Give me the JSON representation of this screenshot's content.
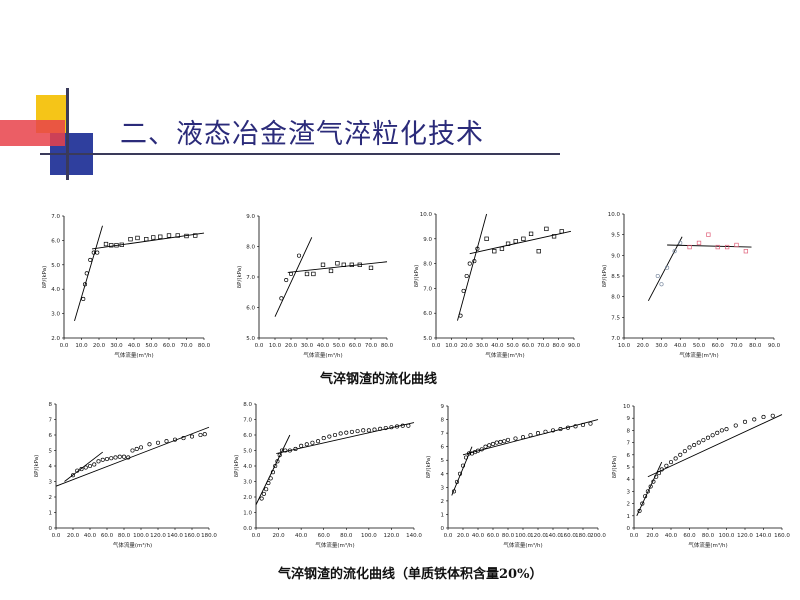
{
  "title": "二、液态冶金渣气淬粒化技术",
  "captions": {
    "row1": "气淬钢渣的流化曲线",
    "row2": "气淬钢渣的流化曲线（单质铁体积含量20%）"
  },
  "colors": {
    "accent_yellow": "#f5c518",
    "accent_red": "#e8424a",
    "accent_blue": "#2f3f9e",
    "title": "#2b2b7a",
    "marker_red": "#e0607a"
  },
  "chart_data": [
    {
      "type": "scatter",
      "marker": "circle",
      "xlabel": "气体流量(m³/h)",
      "ylabel": "δP/(kPa)",
      "xlim": [
        0,
        80
      ],
      "ylim": [
        2,
        7
      ],
      "xticks": [
        "0.0",
        "10.0",
        "20.0",
        "30.0",
        "40.0",
        "50.0",
        "60.0",
        "70.0",
        "80.0"
      ],
      "yticks": [
        "2.0",
        "3.0",
        "4.0",
        "5.0",
        "6.0",
        "7.0"
      ],
      "points": [
        [
          11,
          3.6
        ],
        [
          12,
          4.2
        ],
        [
          13,
          4.65
        ],
        [
          15,
          5.2
        ],
        [
          17,
          5.5
        ],
        [
          19,
          5.5
        ]
      ],
      "points2": [
        [
          24,
          5.85
        ],
        [
          27,
          5.8
        ],
        [
          30,
          5.8
        ],
        [
          33,
          5.82
        ],
        [
          38,
          6.05
        ],
        [
          42,
          6.1
        ],
        [
          47,
          6.05
        ],
        [
          51,
          6.12
        ],
        [
          55,
          6.15
        ],
        [
          60,
          6.2
        ],
        [
          65,
          6.2
        ],
        [
          70,
          6.18
        ],
        [
          75,
          6.2
        ]
      ],
      "lines": [
        [
          [
            6,
            2.7
          ],
          [
            22,
            6.6
          ]
        ],
        [
          [
            16,
            5.65
          ],
          [
            80,
            6.3
          ]
        ]
      ]
    },
    {
      "type": "scatter",
      "marker": "circle",
      "xlabel": "气体流量(m³/h)",
      "ylabel": "δP/(kPa)",
      "xlim": [
        0,
        80
      ],
      "ylim": [
        5,
        9
      ],
      "xticks": [
        "0.0",
        "10.0",
        "20.0",
        "30.0",
        "40.0",
        "50.0",
        "60.0",
        "70.0",
        "80.0"
      ],
      "yticks": [
        "5.0",
        "6.0",
        "7.0",
        "8.0",
        "9.0"
      ],
      "points": [
        [
          14,
          6.3
        ],
        [
          17,
          6.9
        ],
        [
          20,
          7.1
        ],
        [
          25,
          7.7
        ]
      ],
      "points2": [
        [
          30,
          7.1
        ],
        [
          34,
          7.1
        ],
        [
          40,
          7.4
        ],
        [
          45,
          7.2
        ],
        [
          49,
          7.45
        ],
        [
          53,
          7.4
        ],
        [
          58,
          7.4
        ],
        [
          63,
          7.4
        ],
        [
          70,
          7.3
        ]
      ],
      "lines": [
        [
          [
            10,
            5.7
          ],
          [
            33,
            8.3
          ]
        ],
        [
          [
            18,
            7.15
          ],
          [
            80,
            7.5
          ]
        ]
      ]
    },
    {
      "type": "scatter",
      "marker": "circle",
      "xlabel": "气体流量(m³/h)",
      "ylabel": "δP/(kPa)",
      "xlim": [
        0,
        90
      ],
      "ylim": [
        5,
        10
      ],
      "xticks": [
        "0.0",
        "10.0",
        "20.0",
        "30.0",
        "40.0",
        "50.0",
        "60.0",
        "70.0",
        "80.0",
        "90.0"
      ],
      "yticks": [
        "5.0",
        "6.0",
        "7.0",
        "8.0",
        "9.0",
        "10.0"
      ],
      "points": [
        [
          16,
          5.9
        ],
        [
          18,
          6.9
        ],
        [
          20,
          7.5
        ],
        [
          22,
          8.0
        ],
        [
          25,
          8.1
        ],
        [
          27,
          8.6
        ]
      ],
      "points2": [
        [
          33,
          9.0
        ],
        [
          38,
          8.5
        ],
        [
          43,
          8.6
        ],
        [
          47,
          8.8
        ],
        [
          52,
          8.9
        ],
        [
          57,
          9.0
        ],
        [
          62,
          9.2
        ],
        [
          67,
          8.5
        ],
        [
          72,
          9.4
        ],
        [
          77,
          9.1
        ],
        [
          82,
          9.3
        ]
      ],
      "lines": [
        [
          [
            14,
            5.7
          ],
          [
            33,
            10.0
          ]
        ],
        [
          [
            22,
            8.4
          ],
          [
            88,
            9.3
          ]
        ]
      ]
    },
    {
      "type": "scatter",
      "marker": "circle",
      "xlabel": "气体流量(m³/h)",
      "ylabel": "δP/(kPa)",
      "xlim": [
        10,
        90
      ],
      "ylim": [
        7,
        10
      ],
      "xticks": [
        "10.0",
        "20.0",
        "30.0",
        "40.0",
        "50.0",
        "60.0",
        "70.0",
        "80.0",
        "90.0"
      ],
      "yticks": [
        "7.0",
        "7.5",
        "8.0",
        "8.5",
        "9.0",
        "9.5",
        "10.0"
      ],
      "points": [
        [
          28,
          8.5
        ],
        [
          30,
          8.3
        ],
        [
          33,
          8.7
        ],
        [
          37,
          9.1
        ],
        [
          40,
          9.3
        ]
      ],
      "points2": [
        [
          45,
          9.2
        ],
        [
          50,
          9.3
        ],
        [
          55,
          9.5
        ],
        [
          60,
          9.2
        ],
        [
          65,
          9.2
        ],
        [
          70,
          9.25
        ],
        [
          75,
          9.1
        ]
      ],
      "lines": [
        [
          [
            23,
            7.9
          ],
          [
            41,
            9.45
          ]
        ],
        [
          [
            33,
            9.25
          ],
          [
            78,
            9.2
          ]
        ]
      ]
    },
    {
      "type": "scatter",
      "marker": "circle",
      "xlabel": "气体流量(m³/h)",
      "ylabel": "δP/(kPa)",
      "xlim": [
        0,
        180
      ],
      "ylim": [
        0,
        8
      ],
      "xticks": [
        "0.0",
        "20.0",
        "40.0",
        "60.0",
        "80.0",
        "100.0",
        "120.0",
        "140.0",
        "160.0",
        "180.0"
      ],
      "yticks": [
        "0",
        "1",
        "2",
        "3",
        "4",
        "5",
        "6",
        "7",
        "8"
      ],
      "points": [
        [
          20,
          3.4
        ],
        [
          25,
          3.7
        ],
        [
          30,
          3.8
        ],
        [
          35,
          3.9
        ],
        [
          40,
          4.0
        ],
        [
          45,
          4.1
        ],
        [
          50,
          4.3
        ],
        [
          55,
          4.4
        ],
        [
          60,
          4.45
        ],
        [
          65,
          4.5
        ],
        [
          70,
          4.55
        ],
        [
          75,
          4.6
        ],
        [
          80,
          4.6
        ],
        [
          85,
          4.55
        ],
        [
          90,
          5.0
        ],
        [
          95,
          5.1
        ],
        [
          100,
          5.2
        ],
        [
          110,
          5.4
        ],
        [
          120,
          5.5
        ],
        [
          130,
          5.6
        ],
        [
          140,
          5.7
        ],
        [
          150,
          5.8
        ],
        [
          160,
          5.9
        ],
        [
          170,
          6.0
        ],
        [
          175,
          6.05
        ]
      ],
      "points2": [],
      "lines": [
        [
          [
            10,
            3.0
          ],
          [
            55,
            4.9
          ]
        ],
        [
          [
            0,
            2.7
          ],
          [
            180,
            6.5
          ]
        ]
      ]
    },
    {
      "type": "scatter",
      "marker": "circle",
      "xlabel": "气体流量(m³/h)",
      "ylabel": "δP/(kPa)",
      "xlim": [
        0,
        140
      ],
      "ylim": [
        0,
        8
      ],
      "xticks": [
        "0.0",
        "20.0",
        "40.0",
        "60.0",
        "80.0",
        "100.0",
        "120.0",
        "140.0"
      ],
      "yticks": [
        "0.0",
        "1.0",
        "2.0",
        "3.0",
        "4.0",
        "5.0",
        "6.0",
        "7.0",
        "8.0"
      ],
      "points": [
        [
          5,
          1.9
        ],
        [
          7,
          2.2
        ],
        [
          9,
          2.5
        ],
        [
          11,
          2.9
        ],
        [
          13,
          3.2
        ],
        [
          15,
          3.6
        ],
        [
          17,
          4.0
        ],
        [
          19,
          4.3
        ],
        [
          21,
          4.7
        ],
        [
          23,
          5.0
        ],
        [
          26,
          5.0
        ],
        [
          30,
          5.0
        ],
        [
          35,
          5.1
        ],
        [
          40,
          5.3
        ],
        [
          45,
          5.4
        ],
        [
          50,
          5.5
        ],
        [
          55,
          5.6
        ],
        [
          60,
          5.8
        ],
        [
          65,
          5.9
        ],
        [
          70,
          6.0
        ],
        [
          75,
          6.1
        ],
        [
          80,
          6.15
        ],
        [
          85,
          6.2
        ],
        [
          90,
          6.25
        ],
        [
          95,
          6.3
        ],
        [
          100,
          6.3
        ],
        [
          105,
          6.35
        ],
        [
          110,
          6.4
        ],
        [
          115,
          6.45
        ],
        [
          120,
          6.5
        ],
        [
          125,
          6.55
        ],
        [
          130,
          6.6
        ],
        [
          135,
          6.6
        ]
      ],
      "points2": [],
      "lines": [
        [
          [
            0,
            1.5
          ],
          [
            30,
            6.0
          ]
        ],
        [
          [
            18,
            4.8
          ],
          [
            140,
            6.8
          ]
        ]
      ]
    },
    {
      "type": "scatter",
      "marker": "circle",
      "xlabel": "气体流量(m³/h)",
      "ylabel": "δP/(kPa)",
      "xlim": [
        0,
        200
      ],
      "ylim": [
        0,
        9
      ],
      "xticks": [
        "0.0",
        "20.0",
        "40.0",
        "60.0",
        "80.0",
        "100.0",
        "120.0",
        "140.0",
        "160.0",
        "180.0",
        "200.0"
      ],
      "yticks": [
        "0",
        "1",
        "2",
        "3",
        "4",
        "5",
        "6",
        "7",
        "8",
        "9"
      ],
      "points": [
        [
          8,
          2.7
        ],
        [
          12,
          3.4
        ],
        [
          16,
          4.0
        ],
        [
          20,
          4.6
        ],
        [
          24,
          5.2
        ],
        [
          28,
          5.5
        ],
        [
          32,
          5.5
        ],
        [
          36,
          5.6
        ],
        [
          40,
          5.7
        ],
        [
          45,
          5.8
        ],
        [
          50,
          6.0
        ],
        [
          55,
          6.1
        ],
        [
          60,
          6.2
        ],
        [
          65,
          6.3
        ],
        [
          70,
          6.35
        ],
        [
          75,
          6.4
        ],
        [
          80,
          6.5
        ],
        [
          90,
          6.6
        ],
        [
          100,
          6.7
        ],
        [
          110,
          6.85
        ],
        [
          120,
          7.0
        ],
        [
          130,
          7.1
        ],
        [
          140,
          7.2
        ],
        [
          150,
          7.3
        ],
        [
          160,
          7.4
        ],
        [
          170,
          7.5
        ],
        [
          180,
          7.6
        ],
        [
          190,
          7.7
        ]
      ],
      "points2": [],
      "lines": [
        [
          [
            5,
            2.4
          ],
          [
            32,
            6.0
          ]
        ],
        [
          [
            20,
            5.4
          ],
          [
            200,
            8.0
          ]
        ]
      ]
    },
    {
      "type": "scatter",
      "marker": "circle",
      "xlabel": "气体流量(m³/h)",
      "ylabel": "δP/(kPa)",
      "xlim": [
        0,
        160
      ],
      "ylim": [
        0,
        10
      ],
      "xticks": [
        "0.0",
        "20.0",
        "40.0",
        "60.0",
        "80.0",
        "100.0",
        "120.0",
        "140.0",
        "160.0"
      ],
      "yticks": [
        "0",
        "1",
        "2",
        "3",
        "4",
        "5",
        "6",
        "7",
        "8",
        "9",
        "10"
      ],
      "points": [
        [
          6,
          1.4
        ],
        [
          9,
          2.0
        ],
        [
          12,
          2.6
        ],
        [
          15,
          3.0
        ],
        [
          18,
          3.4
        ],
        [
          21,
          3.8
        ],
        [
          24,
          4.2
        ],
        [
          27,
          4.5
        ],
        [
          30,
          4.8
        ],
        [
          35,
          5.1
        ],
        [
          40,
          5.4
        ],
        [
          45,
          5.7
        ],
        [
          50,
          6.0
        ],
        [
          55,
          6.3
        ],
        [
          60,
          6.6
        ],
        [
          65,
          6.8
        ],
        [
          70,
          7.0
        ],
        [
          75,
          7.2
        ],
        [
          80,
          7.4
        ],
        [
          85,
          7.6
        ],
        [
          90,
          7.8
        ],
        [
          95,
          8.0
        ],
        [
          100,
          8.1
        ],
        [
          110,
          8.4
        ],
        [
          120,
          8.7
        ],
        [
          130,
          8.9
        ],
        [
          140,
          9.1
        ],
        [
          150,
          9.2
        ]
      ],
      "points2": [],
      "lines": [
        [
          [
            3,
            1.0
          ],
          [
            30,
            5.4
          ]
        ],
        [
          [
            15,
            4.2
          ],
          [
            160,
            9.3
          ]
        ]
      ]
    }
  ]
}
